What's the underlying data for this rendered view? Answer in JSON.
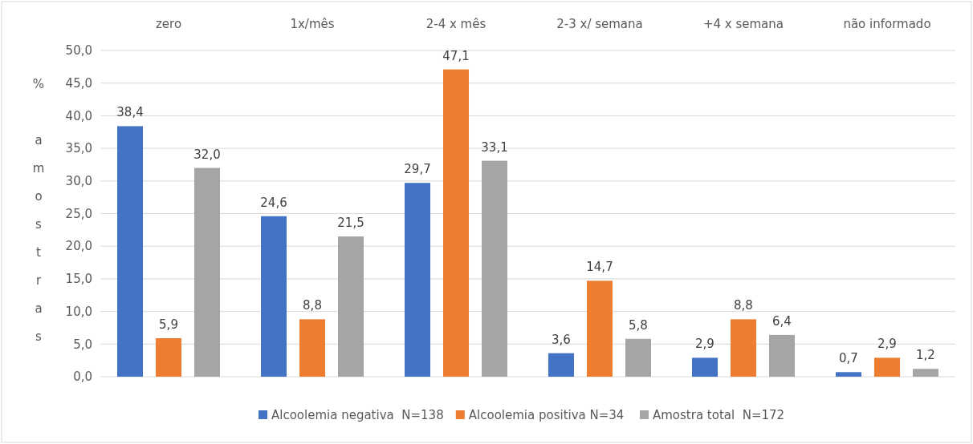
{
  "chart_data": {
    "type": "bar",
    "ylabel": "% amostras",
    "categories": [
      "zero",
      "1x/mês",
      "2-4 x mês",
      "2-3 x/ semana",
      "+4 x semana",
      "não informado"
    ],
    "series": [
      {
        "name": "Alcoolemia negativa  N=138",
        "color": "#4472c4",
        "values": [
          38.4,
          24.6,
          29.7,
          3.6,
          2.9,
          0.7
        ],
        "value_labels": [
          "38,4",
          "24,6",
          "29,7",
          "3,6",
          "2,9",
          "0,7"
        ]
      },
      {
        "name": "Alcoolemia positiva N=34",
        "color": "#ed7d31",
        "values": [
          5.9,
          8.8,
          47.1,
          14.7,
          8.8,
          2.9
        ],
        "value_labels": [
          "5,9",
          "8,8",
          "47,1",
          "14,7",
          "8,8",
          "2,9"
        ]
      },
      {
        "name": "Amostra total  N=172",
        "color": "#a5a5a5",
        "values": [
          32.0,
          21.5,
          33.1,
          5.8,
          6.4,
          1.2
        ],
        "value_labels": [
          "32,0",
          "21,5",
          "33,1",
          "5,8",
          "6,4",
          "1,2"
        ]
      }
    ],
    "ylim": [
      0,
      50
    ],
    "yticks": [
      {
        "value": 0,
        "label": "0,0"
      },
      {
        "value": 5,
        "label": "5,0"
      },
      {
        "value": 10,
        "label": "10,0"
      },
      {
        "value": 15,
        "label": "15,0"
      },
      {
        "value": 20,
        "label": "20,0"
      },
      {
        "value": 25,
        "label": "25,0"
      },
      {
        "value": 30,
        "label": "30,0"
      },
      {
        "value": 35,
        "label": "35,0"
      },
      {
        "value": 40,
        "label": "40,0"
      },
      {
        "value": 45,
        "label": "45,0"
      },
      {
        "value": 50,
        "label": "50,0"
      }
    ],
    "grid": "y",
    "legend": "bottom"
  }
}
